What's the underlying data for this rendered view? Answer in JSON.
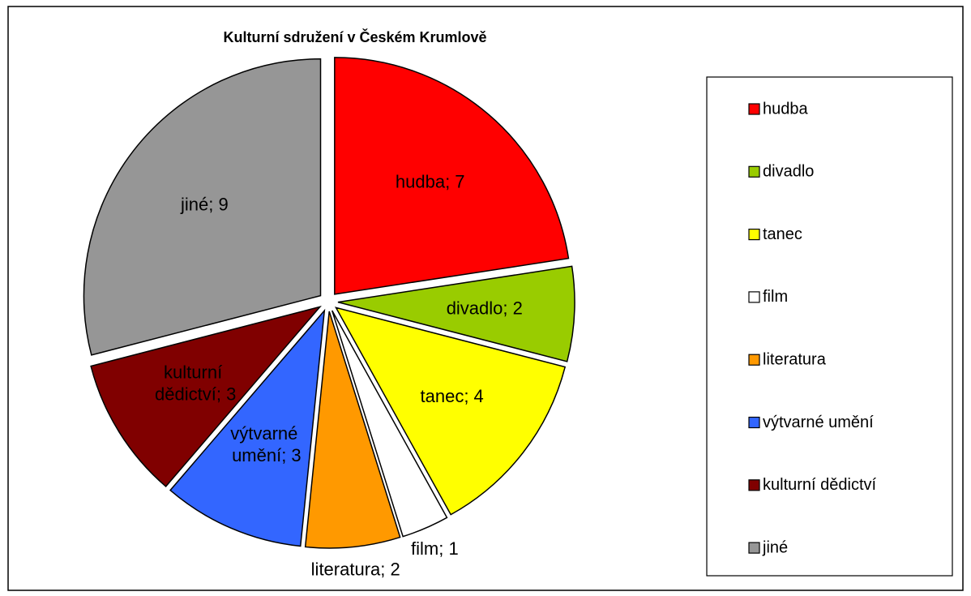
{
  "chart_data": {
    "type": "pie",
    "title": "Kulturní sdružení v Českém Krumlově",
    "categories": [
      "hudba",
      "divadlo",
      "tanec",
      "film",
      "literatura",
      "výtvarné umění",
      "kulturní dědictví",
      "jiné"
    ],
    "values": [
      7,
      2,
      4,
      1,
      2,
      3,
      3,
      9
    ],
    "value_labels": [
      "hudba; 7",
      "divadlo; 2",
      "tanec; 4",
      "film; 1",
      "literatura; 2",
      "výtvarné umění; 3",
      "kulturní dědictví; 3",
      "jiné; 9"
    ],
    "colors": [
      "#ff0000",
      "#99cc00",
      "#ffff00",
      "#ffffff",
      "#ff9900",
      "#3366ff",
      "#800000",
      "#969696"
    ],
    "legend": "right"
  }
}
